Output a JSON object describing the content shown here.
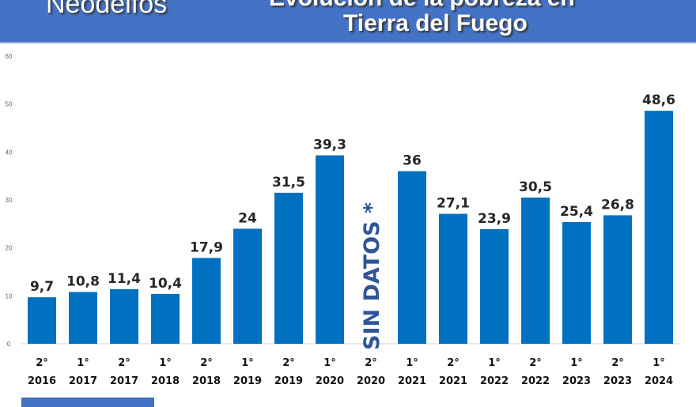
{
  "header": {
    "brand": "Neodelfos",
    "title_line1": "Evolución de la pobreza en",
    "title_line2": "Tierra del Fuego"
  },
  "chart_data": {
    "type": "bar",
    "title": "Evolución de la pobreza en Tierra del Fuego",
    "categories": [
      [
        "2°",
        "2016"
      ],
      [
        "1°",
        "2017"
      ],
      [
        "2°",
        "2017"
      ],
      [
        "1°",
        "2018"
      ],
      [
        "2°",
        "2018"
      ],
      [
        "1°",
        "2019"
      ],
      [
        "2°",
        "2019"
      ],
      [
        "1°",
        "2020"
      ],
      [
        "2°",
        "2020"
      ],
      [
        "1°",
        "2021"
      ],
      [
        "2°",
        "2021"
      ],
      [
        "1°",
        "2022"
      ],
      [
        "2°",
        "2022"
      ],
      [
        "1°",
        "2023"
      ],
      [
        "2°",
        "2023"
      ],
      [
        "1°",
        "2024"
      ]
    ],
    "values": [
      9.7,
      10.8,
      11.4,
      10.4,
      17.9,
      24,
      31.5,
      39.3,
      null,
      36,
      27.1,
      23.9,
      30.5,
      25.4,
      26.8,
      48.6
    ],
    "labels": [
      "9,7",
      "10,8",
      "11,4",
      "10,4",
      "17,9",
      "24",
      "31,5",
      "39,3",
      "",
      "36",
      "27,1",
      "23,9",
      "30,5",
      "25,4",
      "26,8",
      "48,6"
    ],
    "no_data_label": "SIN DATOS *",
    "yticks": [
      0,
      10,
      20,
      30,
      40,
      50,
      60
    ],
    "ylim": [
      0,
      60
    ],
    "bar_color": "#0070C0",
    "annotation_color": "#2F5597"
  }
}
